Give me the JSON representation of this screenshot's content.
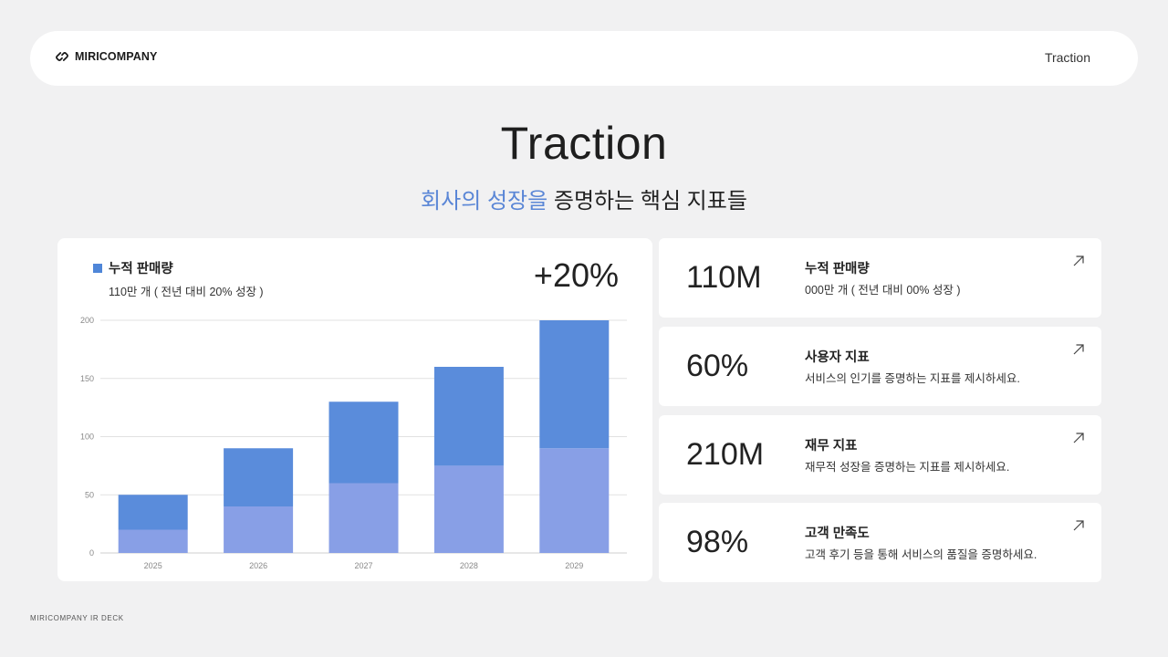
{
  "header": {
    "logo_text": "MIRICOMPANY",
    "nav_label": "Traction"
  },
  "hero": {
    "title": "Traction",
    "subtitle_accent": "회사의 성장을",
    "subtitle_rest": " 증명하는 핵심 지표들"
  },
  "chart_card": {
    "legend_label": "누적 판매량",
    "legend_sub": "110만 개 ( 전년 대비 20% 성장 )",
    "big_value": "+20%"
  },
  "chart_data": {
    "type": "bar",
    "categories": [
      "2025",
      "2026",
      "2027",
      "2028",
      "2029"
    ],
    "series": [
      {
        "values": [
          20,
          40,
          60,
          75,
          90
        ]
      },
      {
        "values": [
          30,
          50,
          70,
          85,
          110
        ]
      }
    ],
    "stacked": true,
    "totals": [
      50,
      90,
      130,
      160,
      200
    ],
    "y_ticks": [
      "0",
      "50",
      "100",
      "150",
      "200"
    ],
    "ylim": [
      0,
      200
    ],
    "grid": true,
    "colors": {
      "lower": "#889fe6",
      "upper": "#5a8cdb"
    }
  },
  "metrics": [
    {
      "value": "110M",
      "title": "누적 판매량",
      "desc": "000만 개 ( 전년 대비 00% 성장 )"
    },
    {
      "value": "60%",
      "title": "사용자 지표",
      "desc": "서비스의 인기를 증명하는 지표를 제시하세요."
    },
    {
      "value": "210M",
      "title": "재무 지표",
      "desc": "재무적 성장을 증명하는 지표를 제시하세요."
    },
    {
      "value": "98%",
      "title": "고객 만족도",
      "desc": "고객 후기 등을 통해 서비스의 품질을 증명하세요."
    }
  ],
  "footer": {
    "text": "MIRICOMPANY IR DECK"
  },
  "icons": {
    "logo": "link-chain-icon",
    "metric_arrow": "arrow-up-right-icon"
  }
}
